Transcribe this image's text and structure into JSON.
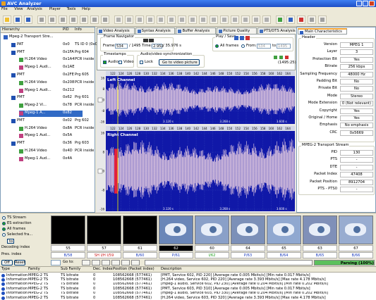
{
  "window": {
    "title": "AVC Analyzer"
  },
  "menu": [
    "File",
    "View",
    "Analysis",
    "Player",
    "Tools",
    "Help"
  ],
  "hierarchy": {
    "headers": [
      "Hierarchy",
      "PID",
      "Info"
    ],
    "root": "Mpeg-2 Transport Stre...",
    "nodes": [
      {
        "label": "PAT",
        "pid": "0x0",
        "info": "TS ID 0 (0x0)"
      },
      {
        "label": "PMT",
        "pid": "0x1FA",
        "info": "Prg 604",
        "children": [
          {
            "label": "H.264 Video",
            "pid": "0x1A4",
            "info": "PCR inside"
          },
          {
            "label": "Mpeg-1 Audi...",
            "pid": "0x1AE"
          }
        ]
      },
      {
        "label": "PMT",
        "pid": "0x2FE",
        "info": "Prg 605",
        "children": [
          {
            "label": "H.264 Video",
            "pid": "0x208",
            "info": "PCR inside"
          },
          {
            "label": "Mpeg-1 Audi...",
            "pid": "0x212"
          }
        ]
      },
      {
        "label": "PMT",
        "pid": "0x62",
        "info": "Prg 601",
        "children": [
          {
            "label": "Mpeg-2 Vi...",
            "pid": "0x78",
            "info": "PCR inside"
          },
          {
            "label": "Mpeg-1 A...",
            "pid": "0x82",
            "selected": true
          }
        ]
      },
      {
        "label": "PMT",
        "pid": "0x02",
        "info": "Prg 602",
        "children": [
          {
            "label": "H.264 Video",
            "pid": "0x8A",
            "info": "PCR inside"
          },
          {
            "label": "Mpeg-1 Aud...",
            "pid": "0x5A"
          }
        ]
      },
      {
        "label": "PMT",
        "pid": "0x36",
        "info": "Prg 603",
        "children": [
          {
            "label": "H.264 Video",
            "pid": "0x4D",
            "info": "PCR inside"
          },
          {
            "label": "Mpeg-1 Aud...",
            "pid": "0x4A"
          }
        ]
      }
    ]
  },
  "tabs": [
    "Video Analysis",
    "Syntax Analysis",
    "Buffer Analysis",
    "Picture Quality",
    "PTS/DTS Analysis",
    "Audio Analysis",
    "TS Player"
  ],
  "active_tab": 5,
  "frame_navigator": {
    "title": "Frame Navigator",
    "frame_label": "Frame:",
    "frame": "534",
    "frame_total": "/ 1495",
    "time_label": "Time:",
    "time": "2.952",
    "time_total": "/ 35.976 s",
    "timestamps": "Timestamps",
    "audio": "Audio",
    "video": "Video",
    "sync": "Audio/video synchronization",
    "lock": "Lock",
    "goto": "Go to video picture",
    "play_save": "Play / Save",
    "all_frames": "All frames",
    "from": "From:",
    "from_value": "534",
    "to": "to",
    "to_value": "1495",
    "count": "(1495:25)"
  },
  "channels": [
    "Left Channel",
    "Right Channel"
  ],
  "x_ticks": [
    122,
    124,
    126,
    128,
    130,
    132,
    134,
    136,
    138,
    140,
    142,
    144,
    146,
    148,
    150,
    152,
    154,
    156,
    158,
    160,
    162,
    164
  ],
  "y_ticks": [
    16,
    8,
    0,
    -8,
    -16
  ],
  "time_labels": [
    "3.120 s",
    "3.268 s",
    "3.600 s"
  ],
  "right_panel": {
    "tab": "Main Characteristics",
    "header": {
      "title": "Header",
      "fields": [
        {
          "name": "Version",
          "value": "MPEG 1"
        },
        {
          "name": "Layer",
          "value": "3"
        },
        {
          "name": "Protection Bit",
          "value": "Yes"
        },
        {
          "name": "Bitrate",
          "value": "256 kbps"
        },
        {
          "name": "Sampling Frequency",
          "value": "48000 Hz"
        },
        {
          "name": "Padding Bit",
          "value": "No"
        },
        {
          "name": "Private Bit",
          "value": "No"
        },
        {
          "name": "Mode",
          "value": "Stereo"
        },
        {
          "name": "Mode Extension",
          "value": "0 (Not relevant)"
        },
        {
          "name": "Copyright",
          "value": "Yes"
        },
        {
          "name": "Original / Home",
          "value": "Yes"
        },
        {
          "name": "Emphasis",
          "value": "No emphasis"
        },
        {
          "name": "CRC",
          "value": "0x5669"
        }
      ]
    },
    "ts": {
      "title": "MPEG-2 Transport Stream",
      "fields": [
        {
          "name": "PID",
          "value": "130"
        },
        {
          "name": "PTS",
          "value": "-"
        },
        {
          "name": "DTE",
          "value": "-"
        },
        {
          "name": "Packet Index",
          "value": "47408"
        },
        {
          "name": "Packet Position",
          "value": "8912704"
        },
        {
          "name": "PTS - PTS0",
          "value": "-"
        }
      ]
    }
  },
  "bottom": {
    "options": [
      "TS Stream",
      "ES extraction",
      "All frames",
      "Selected fra..."
    ],
    "decoding_label": "Decoding index",
    "pres_label": "Pres. index",
    "decoding": [
      55,
      57,
      61,
      62,
      60,
      64,
      65,
      63,
      67
    ],
    "current": 3,
    "pres": [
      "B/58",
      "SH I/H I/59",
      "B/60",
      "P/61",
      "I/62",
      "P/63",
      "B/64",
      "B/65",
      "B/66"
    ],
    "to_button": "to",
    "buttons": [
      "Off",
      "Reset"
    ],
    "goto": "Go to:",
    "parsing": "Parsing (100%)"
  },
  "log": {
    "columns": [
      "Type",
      "Family",
      "Sub Family",
      "Dec. Index",
      "Position (Packet index)",
      "Description"
    ],
    "rows": [
      [
        "Information",
        "MPEG-2 TS",
        "TS bitrate",
        "0",
        "108562668 (577461)",
        "[PMT, Service 602, PID 220] [Average rate 0.005 Mbits/s] [Min rate 0.017 Mbits/s]"
      ],
      [
        "Information",
        "MPEG-2 TS",
        "TS bitrate",
        "0",
        "108562668 (577461)",
        "[H.264 video, Service 602, PID 220] [Average rate 3.393 Mbits/s] [Max rate 4.178 Mbits/s]"
      ],
      [
        "Information",
        "MPEG-2 TS",
        "TS bitrate",
        "0",
        "108562668 (577461)",
        "[mpeg-1 audio, Service 602, PID 230] [Average rate 0.204 Mbits/s] [Min rate 0.202 Mbits/s]"
      ],
      [
        "Information",
        "MPEG-2 TS",
        "TS bitrate",
        "0",
        "108562668 (577461)",
        "[PMT, Service 603, PID 310] [Average rate 0.005 Mbits/s] [Min rate 0.017 Mbits/s]"
      ],
      [
        "Information",
        "MPEG-2 TS",
        "TS bitrate",
        "0",
        "108562668 (577461)",
        "[mpeg-1 audio, Service 603, PID 330] [Average rate 0.204 Mbits/s] [Min rate 0.202 Mbits/s]"
      ],
      [
        "Information",
        "MPEG-2 TS",
        "TS bitrate",
        "0",
        "108562668 (577461)",
        "[H.264 video, Service 603, PID 320] [Average rate 3.393 Mbits/s] [Max rate 4.178 Mbits/s]"
      ]
    ]
  }
}
